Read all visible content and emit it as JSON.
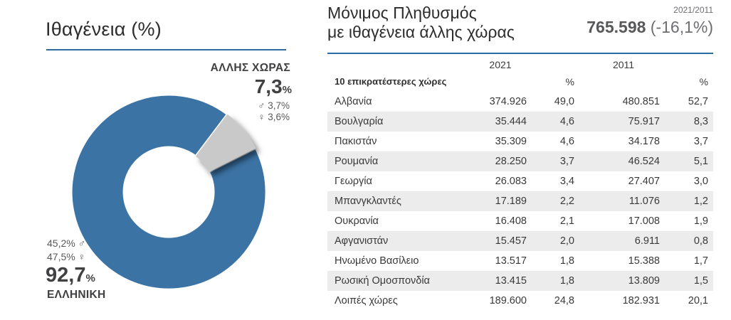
{
  "colors": {
    "donut_greek": "#3b73a5",
    "donut_other": "#c9c9c9",
    "rule_blue": "#2b6ca3",
    "stripe_gray": "#ececec",
    "text_dark": "#414042",
    "text_gray": "#58595b",
    "text_light_gray": "#6d6e71"
  },
  "left_chart": {
    "title": "Ιθαγένεια (%)",
    "other": {
      "label": "ΑΛΛΗΣ ΧΩΡΑΣ",
      "value": "7,3",
      "unit": "%",
      "male": "♂ 3,7%",
      "female": "♀ 3,6%"
    },
    "greek": {
      "label": "ΕΛΛΗΝΙΚΗ",
      "value": "92,7",
      "unit": "%",
      "male": "45,2% ♂",
      "female": "47,5% ♀"
    }
  },
  "right_panel": {
    "title_line1": "Μόνιμος Πληθυσμός",
    "title_line2": "με ιθαγένεια άλλης χώρας",
    "period": "2021/2011",
    "total": "765.598",
    "change": "(-16,1%)"
  },
  "table": {
    "header": {
      "label": "10 επικρατέστερες χώρες",
      "year1": "2021",
      "year2": "2011",
      "pct1": "%",
      "pct2": "%"
    },
    "rows": [
      [
        "Αλβανία",
        "374.926",
        "49,0",
        "480.851",
        "52,7"
      ],
      [
        "Βουλγαρία",
        "35.444",
        "4,6",
        "75.917",
        "8,3"
      ],
      [
        "Πακιστάν",
        "35.309",
        "4,6",
        "34.178",
        "3,7"
      ],
      [
        "Ρουμανία",
        "28.250",
        "3,7",
        "46.524",
        "5,1"
      ],
      [
        "Γεωργία",
        "26.083",
        "3,4",
        "27.407",
        "3,0"
      ],
      [
        "Μπανγκλαντές",
        "17.189",
        "2,2",
        "11.076",
        "1,2"
      ],
      [
        "Ουκρανία",
        "16.408",
        "2,1",
        "17.008",
        "1,9"
      ],
      [
        "Αφγανιστάν",
        "15.457",
        "2,0",
        "6.911",
        "0,8"
      ],
      [
        "Ηνωμένο Βασίλειο",
        "13.517",
        "1,8",
        "15.388",
        "1,7"
      ],
      [
        "Ρωσική Ομοσπονδία",
        "13.415",
        "1,8",
        "13.809",
        "1,5"
      ],
      [
        "Λοιπές χώρες",
        "189.600",
        "24,8",
        "182.931",
        "20,1"
      ]
    ]
  },
  "chart_data": [
    {
      "type": "pie",
      "donut": true,
      "title": "Ιθαγένεια (%)",
      "labels": [
        "ΕΛΛΗΝΙΚΗ",
        "ΑΛΛΗΣ ΧΩΡΑΣ"
      ],
      "values": [
        92.7,
        7.3
      ],
      "colors": [
        "#3b73a5",
        "#c9c9c9"
      ],
      "breakdown": {
        "ΕΛΛΗΝΙΚΗ": {
          "male_pct": 45.2,
          "female_pct": 47.5
        },
        "ΑΛΛΗΣ ΧΩΡΑΣ": {
          "male_pct": 3.7,
          "female_pct": 3.6
        }
      },
      "legend_position": "none",
      "notes": "gray slice starts ~37° clockwise from 12 o'clock, span 26.3°"
    },
    {
      "type": "table",
      "title": "Μόνιμος Πληθυσμός με ιθαγένεια άλλης χώρας",
      "total_2021": 765598,
      "change_2021_vs_2011_pct": -16.1,
      "columns": [
        "10 επικρατέστερες χώρες",
        "2021",
        "%",
        "2011",
        "%"
      ],
      "rows": [
        [
          "Αλβανία",
          374926,
          49.0,
          480851,
          52.7
        ],
        [
          "Βουλγαρία",
          35444,
          4.6,
          75917,
          8.3
        ],
        [
          "Πακιστάν",
          35309,
          4.6,
          34178,
          3.7
        ],
        [
          "Ρουμανία",
          28250,
          3.7,
          46524,
          5.1
        ],
        [
          "Γεωργία",
          26083,
          3.4,
          27407,
          3.0
        ],
        [
          "Μπανγκλαντές",
          17189,
          2.2,
          11076,
          1.2
        ],
        [
          "Ουκρανία",
          16408,
          2.1,
          17008,
          1.9
        ],
        [
          "Αφγανιστάν",
          15457,
          2.0,
          6911,
          0.8
        ],
        [
          "Ηνωμένο Βασίλειο",
          13517,
          1.8,
          15388,
          1.7
        ],
        [
          "Ρωσική Ομοσπονδία",
          13415,
          1.8,
          13809,
          1.5
        ],
        [
          "Λοιπές χώρες",
          189600,
          24.8,
          182931,
          20.1
        ]
      ]
    }
  ]
}
